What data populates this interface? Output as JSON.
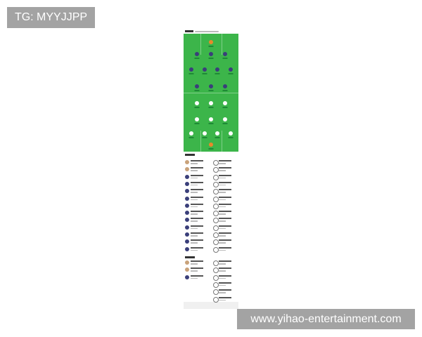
{
  "watermarks": {
    "top_left": "TG: MYYJJPP",
    "bottom_right": "www.yihao-entertainment.com"
  },
  "colors": {
    "pitch": "#3cb54a",
    "home_kit": "#3a3f7a",
    "away_kit": "#ffffff",
    "goalkeeper": "#e8892b",
    "page": "#ffffff"
  },
  "lineup": {
    "home_formation": [
      1,
      3,
      4,
      3
    ],
    "away_formation": [
      3,
      3,
      4,
      1
    ]
  },
  "lists": {
    "starters_left_rows": 13,
    "starters_right_rows": 13,
    "subs_left_rows": 3,
    "subs_right_rows": 6
  }
}
